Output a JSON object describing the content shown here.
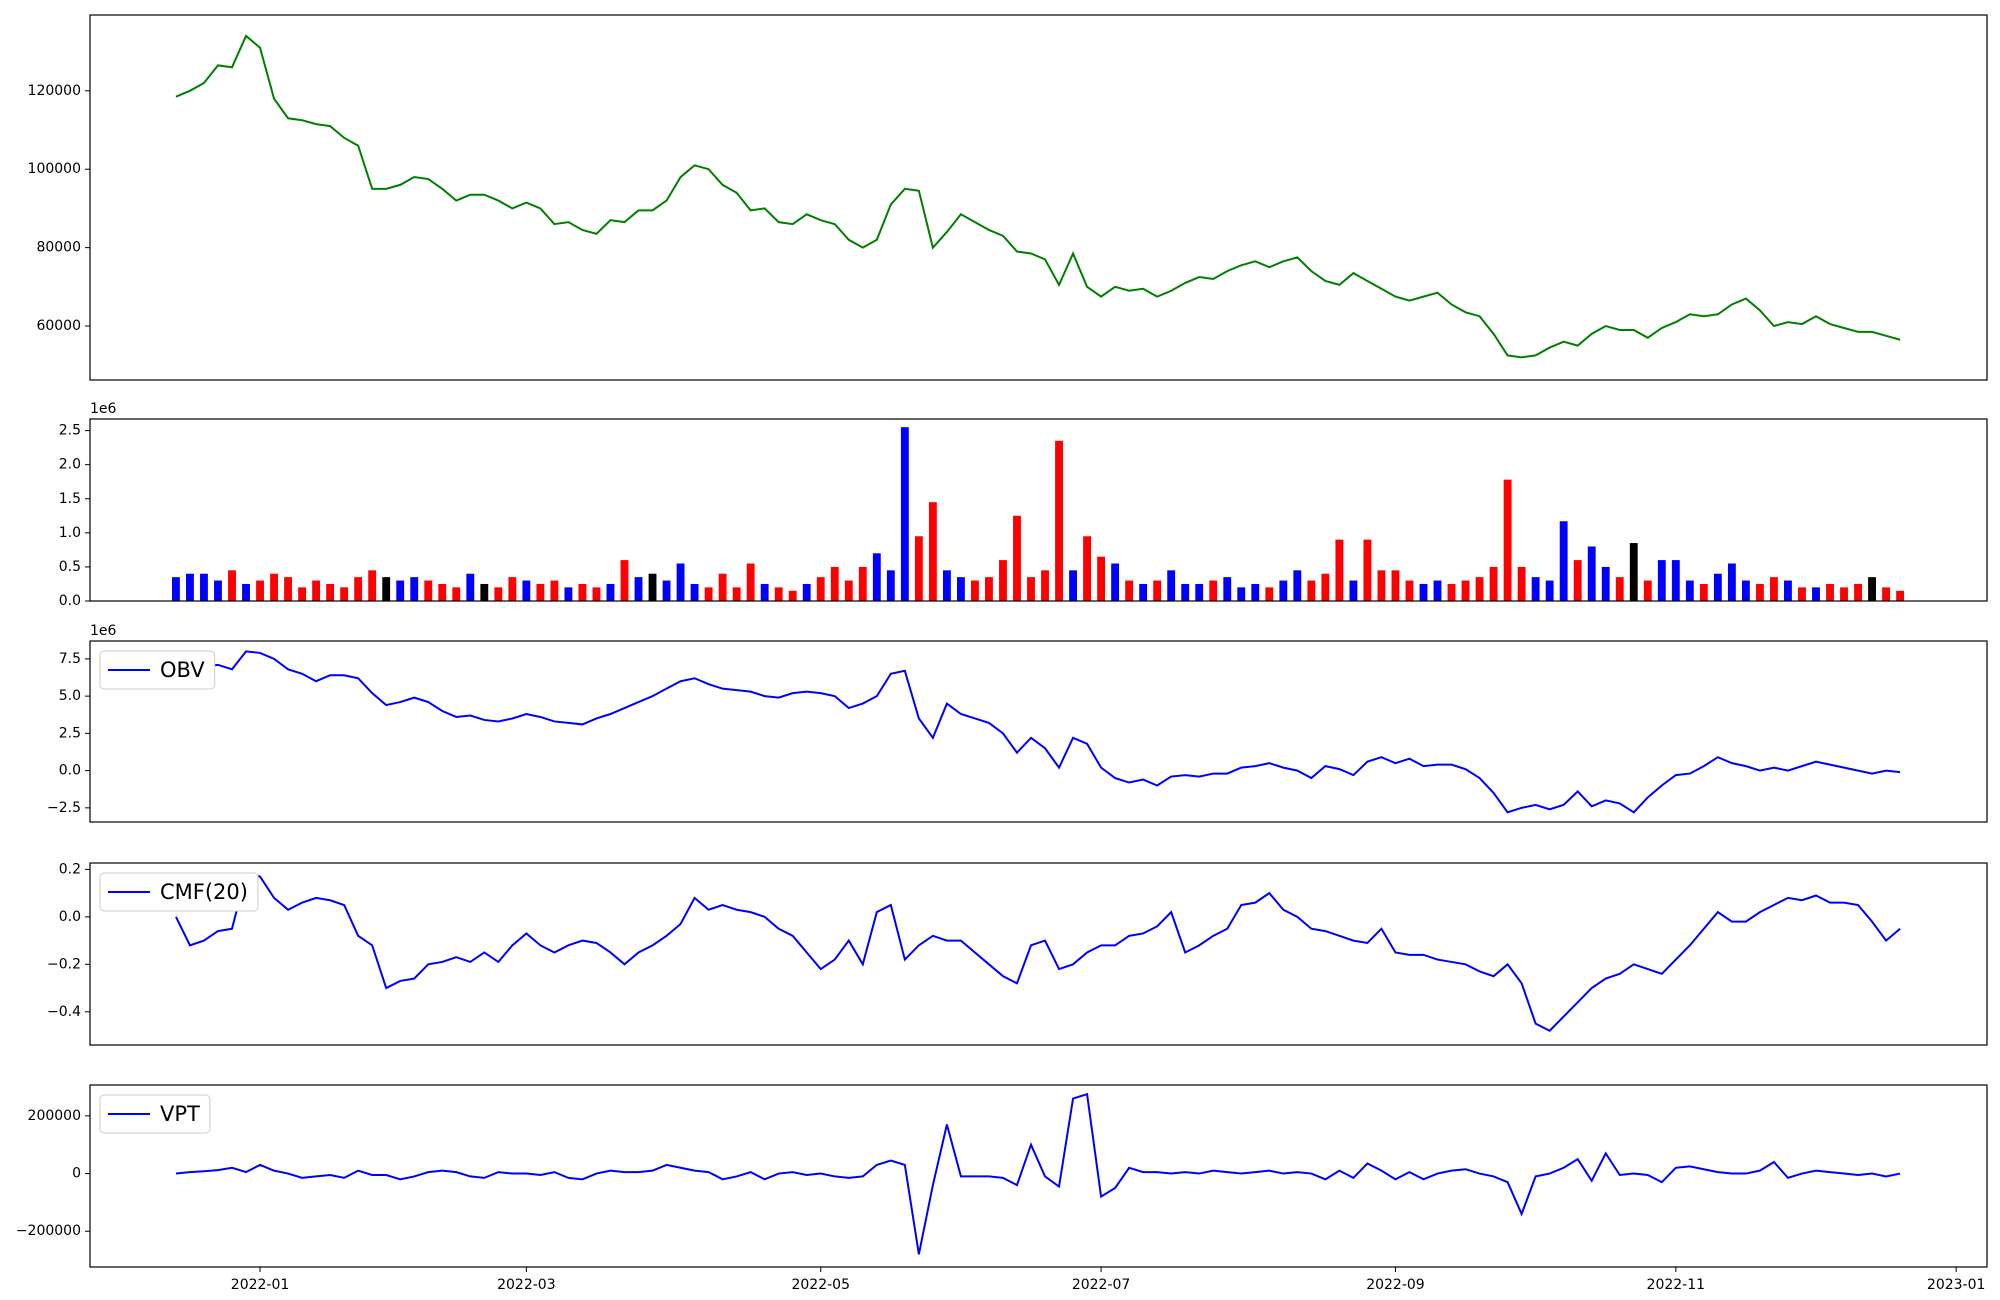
{
  "chart_data": [
    {
      "type": "line",
      "color": "#008000",
      "values": [
        118500,
        120000,
        122000,
        126500,
        126000,
        134000,
        131000,
        118000,
        113000,
        112500,
        111500,
        111000,
        108000,
        106000,
        95000,
        95000,
        96000,
        98000,
        97500,
        95000,
        92000,
        93500,
        93500,
        92000,
        90000,
        91500,
        90000,
        86000,
        86500,
        84500,
        83500,
        87000,
        86500,
        89500,
        89500,
        92000,
        98000,
        101000,
        100000,
        96000,
        94000,
        89500,
        90000,
        86500,
        86000,
        88500,
        87000,
        86000,
        82000,
        80000,
        82000,
        91000,
        95000,
        94500,
        80000,
        84000,
        88500,
        86500,
        84500,
        83000,
        79000,
        78500,
        77000,
        70500,
        78500,
        70000,
        67500,
        70000,
        69000,
        69500,
        67500,
        69000,
        71000,
        72500,
        72000,
        74000,
        75500,
        76500,
        75000,
        76500,
        77500,
        74000,
        71500,
        70500,
        73500,
        71500,
        69500,
        67500,
        66500,
        67500,
        68500,
        65500,
        63500,
        62500,
        58000,
        52500,
        52000,
        52500,
        54500,
        56000,
        55000,
        58000,
        60000,
        59000,
        59000,
        57000,
        59500,
        61000,
        63000,
        62500,
        63000,
        65500,
        67000,
        64000,
        60000,
        61000,
        60500,
        62500,
        60500,
        59500,
        58500,
        58500,
        57500,
        56500,
        null,
        null,
        null,
        null
      ],
      "ylim": [
        46230,
        139340
      ],
      "yticks": [
        60000,
        80000,
        100000,
        120000
      ]
    },
    {
      "type": "bar",
      "up_color": "#0000ff",
      "down_color": "#ff0000",
      "flat_color": "#000000",
      "offset_label": "1e6",
      "values": [
        0.35,
        0.4,
        0.4,
        0.3,
        0.45,
        0.25,
        0.3,
        0.4,
        0.35,
        0.2,
        0.3,
        0.25,
        0.2,
        0.35,
        0.45,
        0.35,
        0.3,
        0.35,
        0.3,
        0.25,
        0.2,
        0.4,
        0.25,
        0.2,
        0.35,
        0.3,
        0.25,
        0.3,
        0.2,
        0.25,
        0.2,
        0.25,
        0.6,
        0.35,
        0.4,
        0.3,
        0.55,
        0.25,
        0.2,
        0.4,
        0.2,
        0.55,
        0.25,
        0.2,
        0.15,
        0.25,
        0.35,
        0.5,
        0.3,
        0.5,
        0.7,
        0.45,
        2.55,
        0.95,
        1.45,
        0.45,
        0.35,
        0.3,
        0.35,
        0.6,
        1.25,
        0.35,
        0.45,
        2.35,
        0.45,
        0.95,
        0.65,
        0.55,
        0.3,
        0.25,
        0.3,
        0.45,
        0.25,
        0.25,
        0.3,
        0.35,
        0.2,
        0.25,
        0.2,
        0.3,
        0.45,
        0.3,
        0.4,
        0.9,
        0.3,
        0.9,
        0.45,
        0.45,
        0.3,
        0.25,
        0.3,
        0.25,
        0.3,
        0.35,
        0.5,
        1.78,
        0.5,
        0.35,
        0.3,
        1.17,
        0.6,
        0.8,
        0.5,
        0.35,
        0.85,
        0.3,
        0.6,
        0.6,
        0.3,
        0.25,
        0.4,
        0.55,
        0.3,
        0.25,
        0.35,
        0.3,
        0.2,
        0.2,
        0.25,
        0.2,
        0.25,
        0.35,
        0.2,
        0.15,
        null,
        null,
        null,
        null
      ],
      "ylim": [
        0,
        2.67
      ],
      "yticks": [
        {
          "value": 0,
          "label": "0.0"
        },
        0.5,
        {
          "value": 1,
          "label": "1.0"
        },
        1.5,
        {
          "value": 2,
          "label": "2.0"
        },
        2.5
      ]
    },
    {
      "type": "line",
      "offset_label": "1e6",
      "legend": "upper left",
      "series": [
        {
          "name": "OBV",
          "color": "#0000ff",
          "values": [
            7.3,
            7.2,
            7.0,
            7.1,
            6.8,
            8.0,
            7.9,
            7.5,
            6.8,
            6.5,
            6.0,
            6.4,
            6.4,
            6.2,
            5.2,
            4.4,
            4.6,
            4.9,
            4.6,
            4.0,
            3.6,
            3.7,
            3.4,
            3.3,
            3.5,
            3.8,
            3.6,
            3.3,
            3.2,
            3.1,
            3.5,
            3.8,
            4.2,
            4.6,
            5.0,
            5.5,
            6.0,
            6.2,
            5.8,
            5.5,
            5.4,
            5.3,
            5.0,
            4.9,
            5.2,
            5.3,
            5.2,
            5.0,
            4.2,
            4.5,
            5.0,
            6.5,
            6.7,
            3.5,
            2.2,
            4.5,
            3.8,
            3.5,
            3.2,
            2.5,
            1.2,
            2.2,
            1.5,
            0.2,
            2.2,
            1.8,
            0.2,
            -0.5,
            -0.8,
            -0.6,
            -1.0,
            -0.4,
            -0.3,
            -0.4,
            -0.2,
            -0.2,
            0.2,
            0.3,
            0.5,
            0.2,
            0.0,
            -0.5,
            0.3,
            0.1,
            -0.3,
            0.6,
            0.9,
            0.5,
            0.8,
            0.3,
            0.4,
            0.4,
            0.1,
            -0.5,
            -1.5,
            -2.8,
            -2.5,
            -2.3,
            -2.6,
            -2.3,
            -1.4,
            -2.4,
            -2.0,
            -2.2,
            -2.8,
            -1.8,
            -1.0,
            -0.3,
            -0.2,
            0.3,
            0.9,
            0.5,
            0.3,
            0.0,
            0.2,
            0.0,
            0.3,
            0.6,
            0.4,
            0.2,
            0.0,
            -0.2,
            0.0,
            -0.1,
            null,
            null,
            null,
            null
          ]
        }
      ],
      "ylim": [
        -3.45,
        8.7
      ],
      "yticks": [
        {
          "value": -2.5,
          "label": "−2.5"
        },
        {
          "value": 0,
          "label": "0.0"
        },
        2.5,
        {
          "value": 5,
          "label": "5.0"
        },
        7.5
      ]
    },
    {
      "type": "line",
      "legend": "upper left",
      "series": [
        {
          "name": "CMF(20)",
          "color": "#0000ff",
          "values": [
            0.0,
            -0.12,
            -0.1,
            -0.06,
            -0.05,
            0.18,
            0.17,
            0.08,
            0.03,
            0.06,
            0.08,
            0.07,
            0.05,
            -0.08,
            -0.12,
            -0.3,
            -0.27,
            -0.26,
            -0.2,
            -0.19,
            -0.17,
            -0.19,
            -0.15,
            -0.19,
            -0.12,
            -0.07,
            -0.12,
            -0.15,
            -0.12,
            -0.1,
            -0.11,
            -0.15,
            -0.2,
            -0.15,
            -0.12,
            -0.08,
            -0.03,
            0.08,
            0.03,
            0.05,
            0.03,
            0.02,
            0.0,
            -0.05,
            -0.08,
            -0.15,
            -0.22,
            -0.18,
            -0.1,
            -0.2,
            0.02,
            0.05,
            -0.18,
            -0.12,
            -0.08,
            -0.1,
            -0.1,
            -0.15,
            -0.2,
            -0.25,
            -0.28,
            -0.12,
            -0.1,
            -0.22,
            -0.2,
            -0.15,
            -0.12,
            -0.12,
            -0.08,
            -0.07,
            -0.04,
            0.02,
            -0.15,
            -0.12,
            -0.08,
            -0.05,
            0.05,
            0.06,
            0.1,
            0.03,
            0.0,
            -0.05,
            -0.06,
            -0.08,
            -0.1,
            -0.11,
            -0.05,
            -0.15,
            -0.16,
            -0.16,
            -0.18,
            -0.19,
            -0.2,
            -0.23,
            -0.25,
            -0.2,
            -0.28,
            -0.45,
            -0.48,
            -0.42,
            -0.36,
            -0.3,
            -0.26,
            -0.24,
            -0.2,
            -0.22,
            -0.24,
            -0.18,
            -0.12,
            -0.05,
            0.02,
            -0.02,
            -0.02,
            0.02,
            0.05,
            0.08,
            0.07,
            0.09,
            0.06,
            0.06,
            0.05,
            -0.02,
            -0.1,
            -0.05,
            null,
            null,
            null,
            null
          ]
        }
      ],
      "ylim": [
        -0.54,
        0.227
      ],
      "yticks": [
        {
          "value": -0.4,
          "label": "−0.4"
        },
        {
          "value": -0.2,
          "label": "−0.2"
        },
        {
          "value": 0,
          "label": "0.0"
        },
        0.2
      ]
    },
    {
      "type": "line",
      "legend": "upper left",
      "series": [
        {
          "name": "VPT",
          "color": "#0000ff",
          "values": [
            0,
            5000,
            8000,
            12000,
            20000,
            5000,
            30000,
            10000,
            0,
            -15000,
            -10000,
            -5000,
            -15000,
            10000,
            -5000,
            -5000,
            -20000,
            -10000,
            5000,
            10000,
            5000,
            -10000,
            -15000,
            5000,
            0,
            0,
            -5000,
            5000,
            -15000,
            -20000,
            0,
            10000,
            5000,
            5000,
            10000,
            30000,
            20000,
            10000,
            5000,
            -20000,
            -10000,
            5000,
            -20000,
            0,
            5000,
            -5000,
            0,
            -10000,
            -15000,
            -10000,
            30000,
            45000,
            30000,
            -280000,
            -40000,
            170000,
            -10000,
            -10000,
            -10000,
            -15000,
            -40000,
            100000,
            -10000,
            -45000,
            260000,
            275000,
            -80000,
            -50000,
            20000,
            5000,
            5000,
            0,
            5000,
            0,
            10000,
            5000,
            0,
            5000,
            10000,
            0,
            5000,
            0,
            -20000,
            10000,
            -15000,
            35000,
            10000,
            -20000,
            5000,
            -20000,
            0,
            10000,
            15000,
            0,
            -10000,
            -30000,
            -140000,
            -10000,
            0,
            20000,
            50000,
            -25000,
            70000,
            -5000,
            0,
            -5000,
            -30000,
            20000,
            25000,
            15000,
            5000,
            0,
            0,
            10000,
            40000,
            -15000,
            0,
            10000,
            5000,
            0,
            -5000,
            0,
            -10000,
            0,
            null,
            null,
            null,
            null
          ]
        }
      ],
      "ylim": [
        -324000,
        307000
      ],
      "yticks": [
        {
          "value": -200000,
          "label": "−200000"
        },
        0,
        200000
      ],
      "categories": [
        null,
        null,
        null,
        null,
        null,
        null,
        "2022-01",
        null,
        null,
        null,
        null,
        null,
        null,
        null,
        null,
        null,
        null,
        null,
        null,
        null,
        null,
        null,
        null,
        null,
        null,
        "2022-03",
        null,
        null,
        null,
        null,
        null,
        null,
        null,
        null,
        null,
        null,
        null,
        null,
        null,
        null,
        null,
        null,
        null,
        null,
        null,
        null,
        "2022-05",
        null,
        null,
        null,
        null,
        null,
        null,
        null,
        null,
        null,
        null,
        null,
        null,
        null,
        null,
        null,
        null,
        null,
        null,
        null,
        "2022-07",
        null,
        null,
        null,
        null,
        null,
        null,
        null,
        null,
        null,
        null,
        null,
        null,
        null,
        null,
        null,
        null,
        null,
        null,
        null,
        null,
        "2022-09",
        null,
        null,
        null,
        null,
        null,
        null,
        null,
        null,
        null,
        null,
        null,
        null,
        null,
        null,
        null,
        null,
        null,
        null,
        null,
        "2022-11",
        null,
        null,
        null,
        null,
        null,
        null,
        null,
        null,
        null,
        null,
        null,
        null,
        null,
        null,
        null,
        null,
        null,
        null,
        null,
        "2023-01"
      ]
    }
  ]
}
